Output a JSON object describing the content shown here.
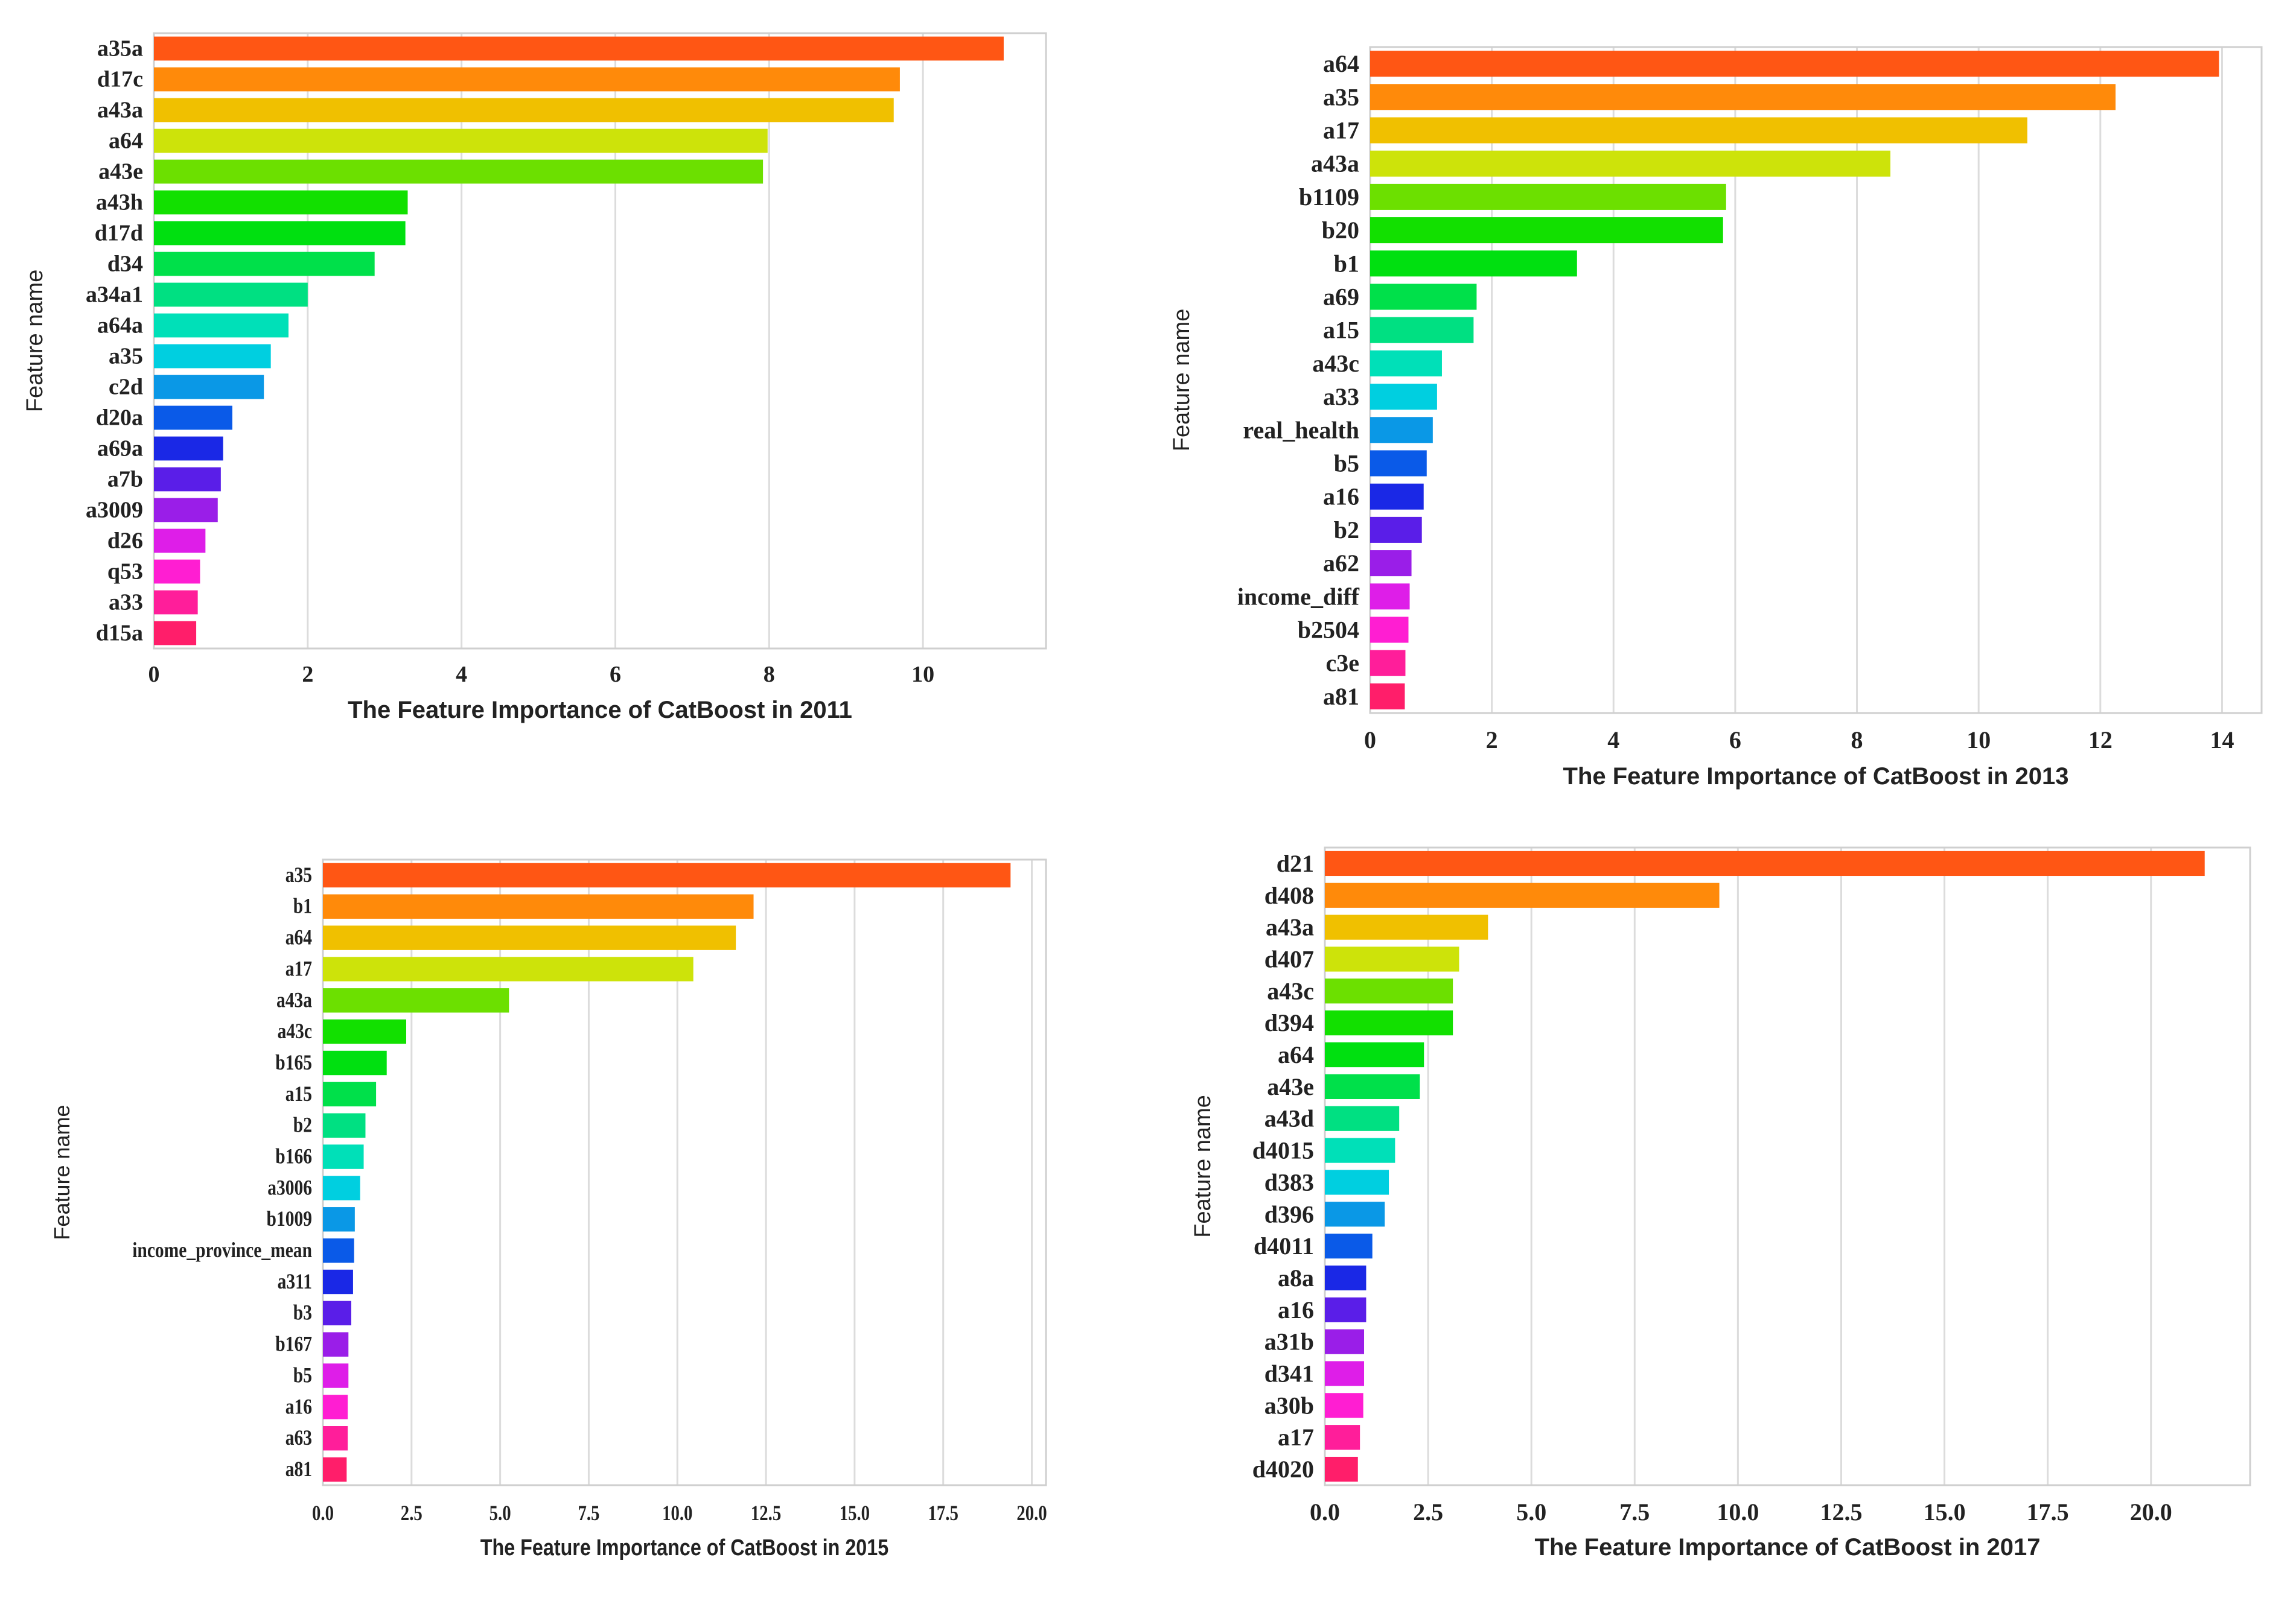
{
  "chart_data": [
    {
      "type": "bar",
      "orientation": "horizontal",
      "categories": [
        "a35a",
        "d17c",
        "a43a",
        "a64",
        "a43e",
        "a43h",
        "d17d",
        "d34",
        "a34a1",
        "a64a",
        "a35",
        "c2d",
        "d20a",
        "a69a",
        "a7b",
        "a3009",
        "d26",
        "q53",
        "a33",
        "d15a"
      ],
      "values": [
        11.05,
        9.7,
        9.62,
        7.98,
        7.92,
        3.3,
        3.27,
        2.87,
        2.0,
        1.75,
        1.52,
        1.43,
        1.02,
        0.9,
        0.87,
        0.83,
        0.67,
        0.6,
        0.57,
        0.55
      ],
      "colors": [
        "#ff5614",
        "#ff8a0a",
        "#f0c000",
        "#cde30a",
        "#6ce000",
        "#12e000",
        "#00e010",
        "#00e04a",
        "#00e082",
        "#00e0b8",
        "#00cfe0",
        "#0a98e6",
        "#0a5ae8",
        "#1a28e6",
        "#5a1ee8",
        "#9a1ee8",
        "#de1ee8",
        "#ff1ed2",
        "#ff1e9a",
        "#ff1e6a"
      ],
      "xticks": [
        "0",
        "2",
        "4",
        "6",
        "8",
        "10"
      ],
      "xlim": [
        0,
        11.6
      ],
      "xlabel": "The Feature Importance of CatBoost in 2011",
      "ylabel": "Feature name",
      "grid": "vertical"
    },
    {
      "type": "bar",
      "orientation": "horizontal",
      "categories": [
        "a64",
        "a35",
        "a17",
        "a43a",
        "b1109",
        "b20",
        "b1",
        "a69",
        "a15",
        "a43c",
        "a33",
        "real_health",
        "b5",
        "a16",
        "b2",
        "a62",
        "income_diff",
        "b2504",
        "c3e",
        "a81"
      ],
      "values": [
        13.95,
        12.25,
        10.8,
        8.55,
        5.85,
        5.8,
        3.4,
        1.75,
        1.7,
        1.18,
        1.1,
        1.03,
        0.93,
        0.88,
        0.85,
        0.68,
        0.65,
        0.63,
        0.58,
        0.57
      ],
      "colors": [
        "#ff5614",
        "#ff8a0a",
        "#f0c000",
        "#cde30a",
        "#6ce000",
        "#12e000",
        "#00e010",
        "#00e04a",
        "#00e082",
        "#00e0b8",
        "#00cfe0",
        "#0a98e6",
        "#0a5ae8",
        "#1a28e6",
        "#5a1ee8",
        "#9a1ee8",
        "#de1ee8",
        "#ff1ed2",
        "#ff1e9a",
        "#ff1e6a"
      ],
      "xticks": [
        "0",
        "2",
        "4",
        "6",
        "8",
        "10",
        "12",
        "14"
      ],
      "xlim": [
        0,
        14.65
      ],
      "xlabel": "The Feature Importance of CatBoost in 2013",
      "ylabel": "Feature name",
      "grid": "vertical"
    },
    {
      "type": "bar",
      "orientation": "horizontal",
      "categories": [
        "a35",
        "b1",
        "a64",
        "a17",
        "a43a",
        "a43c",
        "b165",
        "a15",
        "b2",
        "b166",
        "a3006",
        "b1009",
        "income_province_mean",
        "a311",
        "b3",
        "b167",
        "b5",
        "a16",
        "a63",
        "a81"
      ],
      "values": [
        19.4,
        12.15,
        11.65,
        10.45,
        5.25,
        2.35,
        1.8,
        1.5,
        1.2,
        1.15,
        1.05,
        0.9,
        0.88,
        0.85,
        0.8,
        0.72,
        0.72,
        0.7,
        0.7,
        0.67
      ],
      "colors": [
        "#ff5614",
        "#ff8a0a",
        "#f0c000",
        "#cde30a",
        "#6ce000",
        "#12e000",
        "#00e010",
        "#00e04a",
        "#00e082",
        "#00e0b8",
        "#00cfe0",
        "#0a98e6",
        "#0a5ae8",
        "#1a28e6",
        "#5a1ee8",
        "#9a1ee8",
        "#de1ee8",
        "#ff1ed2",
        "#ff1e9a",
        "#ff1e6a"
      ],
      "xticks": [
        "0.0",
        "2.5",
        "5.0",
        "7.5",
        "10.0",
        "12.5",
        "15.0",
        "17.5",
        "20.0"
      ],
      "xlim": [
        0,
        20.4
      ],
      "xlabel": "The Feature Importance of CatBoost in 2015",
      "ylabel": "Feature name",
      "grid": "vertical"
    },
    {
      "type": "bar",
      "orientation": "horizontal",
      "categories": [
        "d21",
        "d408",
        "a43a",
        "d407",
        "a43c",
        "d394",
        "a64",
        "a43e",
        "a43d",
        "d4015",
        "d383",
        "d396",
        "d4011",
        "a8a",
        "a16",
        "a31b",
        "d341",
        "a30b",
        "a17",
        "d4020"
      ],
      "values": [
        21.3,
        9.55,
        3.95,
        3.25,
        3.1,
        3.1,
        2.4,
        2.3,
        1.8,
        1.7,
        1.55,
        1.45,
        1.15,
        1.0,
        1.0,
        0.95,
        0.95,
        0.93,
        0.85,
        0.8
      ],
      "colors": [
        "#ff5614",
        "#ff8a0a",
        "#f0c000",
        "#cde30a",
        "#6ce000",
        "#12e000",
        "#00e010",
        "#00e04a",
        "#00e082",
        "#00e0b8",
        "#00cfe0",
        "#0a98e6",
        "#0a5ae8",
        "#1a28e6",
        "#5a1ee8",
        "#9a1ee8",
        "#de1ee8",
        "#ff1ed2",
        "#ff1e9a",
        "#ff1e6a"
      ],
      "xticks": [
        "0.0",
        "2.5",
        "5.0",
        "7.5",
        "10.0",
        "12.5",
        "15.0",
        "17.5",
        "20.0"
      ],
      "xlim": [
        0,
        22.4
      ],
      "xlabel": "The Feature Importance of CatBoost in 2017",
      "ylabel": "Feature name",
      "grid": "vertical"
    }
  ]
}
